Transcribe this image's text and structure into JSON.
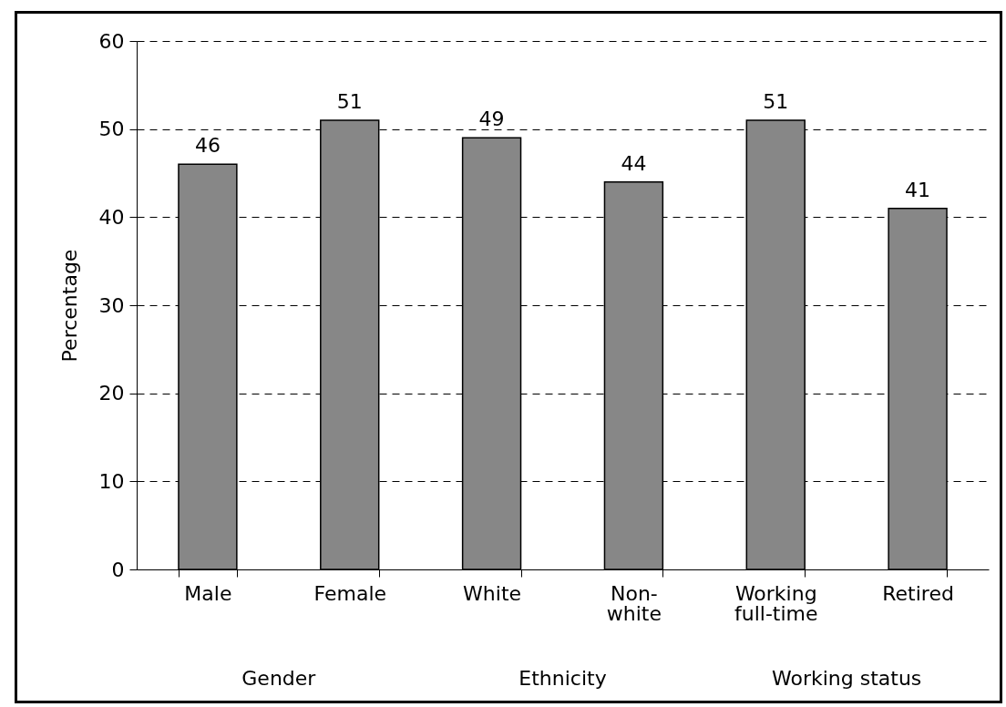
{
  "chart_data": {
    "type": "bar",
    "ylabel": "Percentage",
    "categories": [
      "Male",
      "Female",
      "White",
      "Non-\nwhite",
      "Working\nfull-time",
      "Retired"
    ],
    "values": [
      46,
      51,
      49,
      44,
      51,
      41
    ],
    "color": "#878787",
    "ylim": [
      0,
      60
    ],
    "yticks": [
      0,
      10,
      20,
      30,
      40,
      50,
      60
    ],
    "grid": "y",
    "data_labels": true,
    "annotations": [
      "Gender",
      "Ethnicity",
      "Working status"
    ]
  }
}
